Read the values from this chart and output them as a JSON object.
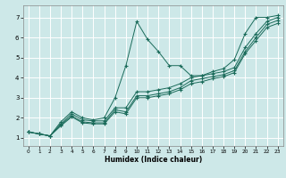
{
  "xlabel": "Humidex (Indice chaleur)",
  "background_color": "#cde8e8",
  "grid_color": "#ffffff",
  "line_color": "#1a6b5a",
  "xlim": [
    -0.5,
    23.5
  ],
  "ylim": [
    0.6,
    7.6
  ],
  "xticks": [
    0,
    1,
    2,
    3,
    4,
    5,
    6,
    7,
    8,
    9,
    10,
    11,
    12,
    13,
    14,
    15,
    16,
    17,
    18,
    19,
    20,
    21,
    22,
    23
  ],
  "yticks": [
    1,
    2,
    3,
    4,
    5,
    6,
    7
  ],
  "lines": [
    {
      "comment": "Volatile zigzag line - peaks at x=10 ~6.8, x=12 ~5.3, x=9 ~4.6",
      "x": [
        0,
        1,
        2,
        3,
        4,
        5,
        6,
        7,
        8,
        9,
        10,
        11,
        12,
        13,
        14,
        15,
        16,
        17,
        18,
        19,
        20,
        21,
        22,
        23
      ],
      "y": [
        1.3,
        1.2,
        1.1,
        1.8,
        2.3,
        2.0,
        1.9,
        2.0,
        3.0,
        4.6,
        6.8,
        5.9,
        5.3,
        4.6,
        4.6,
        4.1,
        4.1,
        4.3,
        4.45,
        4.9,
        6.2,
        7.0,
        7.0,
        7.1
      ]
    },
    {
      "x": [
        0,
        1,
        2,
        3,
        4,
        5,
        6,
        7,
        8,
        9,
        10,
        11,
        12,
        13,
        14,
        15,
        16,
        17,
        18,
        19,
        20,
        21,
        22,
        23
      ],
      "y": [
        1.3,
        1.2,
        1.1,
        1.7,
        2.2,
        1.9,
        1.85,
        1.85,
        2.5,
        2.5,
        3.3,
        3.3,
        3.4,
        3.5,
        3.7,
        4.0,
        4.1,
        4.2,
        4.3,
        4.5,
        5.5,
        6.2,
        6.8,
        7.0
      ]
    },
    {
      "x": [
        0,
        1,
        2,
        3,
        4,
        5,
        6,
        7,
        8,
        9,
        10,
        11,
        12,
        13,
        14,
        15,
        16,
        17,
        18,
        19,
        20,
        21,
        22,
        23
      ],
      "y": [
        1.3,
        1.2,
        1.1,
        1.65,
        2.1,
        1.8,
        1.75,
        1.75,
        2.4,
        2.3,
        3.1,
        3.1,
        3.2,
        3.3,
        3.5,
        3.85,
        3.95,
        4.05,
        4.15,
        4.35,
        5.3,
        6.0,
        6.65,
        6.85
      ]
    },
    {
      "x": [
        0,
        1,
        2,
        3,
        4,
        5,
        6,
        7,
        8,
        9,
        10,
        11,
        12,
        13,
        14,
        15,
        16,
        17,
        18,
        19,
        20,
        21,
        22,
        23
      ],
      "y": [
        1.3,
        1.2,
        1.1,
        1.6,
        2.05,
        1.75,
        1.7,
        1.7,
        2.3,
        2.2,
        3.0,
        3.0,
        3.1,
        3.2,
        3.4,
        3.7,
        3.8,
        3.95,
        4.05,
        4.25,
        5.2,
        5.85,
        6.5,
        6.7
      ]
    }
  ]
}
